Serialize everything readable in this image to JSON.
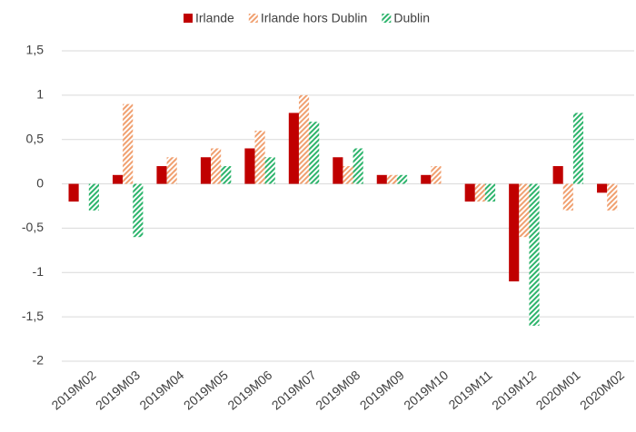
{
  "chart_data": {
    "type": "bar",
    "categories": [
      "2019M02",
      "2019M03",
      "2019M04",
      "2019M05",
      "2019M06",
      "2019M07",
      "2019M08",
      "2019M09",
      "2019M10",
      "2019M11",
      "2019M12",
      "2020M01",
      "2020M02"
    ],
    "series": [
      {
        "name": "Irlande",
        "color": "#c00000",
        "hatch": false,
        "values": [
          -0.2,
          0.1,
          0.2,
          0.3,
          0.4,
          0.8,
          0.3,
          0.1,
          0.1,
          -0.2,
          -1.1,
          0.2,
          -0.1
        ]
      },
      {
        "name": "Irlande hors Dublin",
        "color": "#f0a070",
        "hatch": true,
        "values": [
          0,
          0.9,
          0.3,
          0.4,
          0.6,
          1.0,
          0.2,
          0.1,
          0.2,
          -0.2,
          -0.6,
          -0.3,
          -0.3
        ]
      },
      {
        "name": "Dublin",
        "color": "#2db46c",
        "hatch": true,
        "values": [
          -0.3,
          -0.6,
          0,
          0.2,
          0.3,
          0.7,
          0.4,
          0.1,
          0,
          -0.2,
          -1.6,
          0.8,
          0
        ]
      }
    ],
    "ylim": [
      -2,
      1.5
    ],
    "yticks": [
      -2,
      {
        "value": -1.5,
        "label": "-1,5"
      },
      -1,
      {
        "value": -0.5,
        "label": "-0,5"
      },
      0,
      {
        "value": 0.5,
        "label": "0,5"
      },
      1,
      {
        "value": 1.5,
        "label": "1,5"
      }
    ],
    "grid": true,
    "legend": "top"
  }
}
